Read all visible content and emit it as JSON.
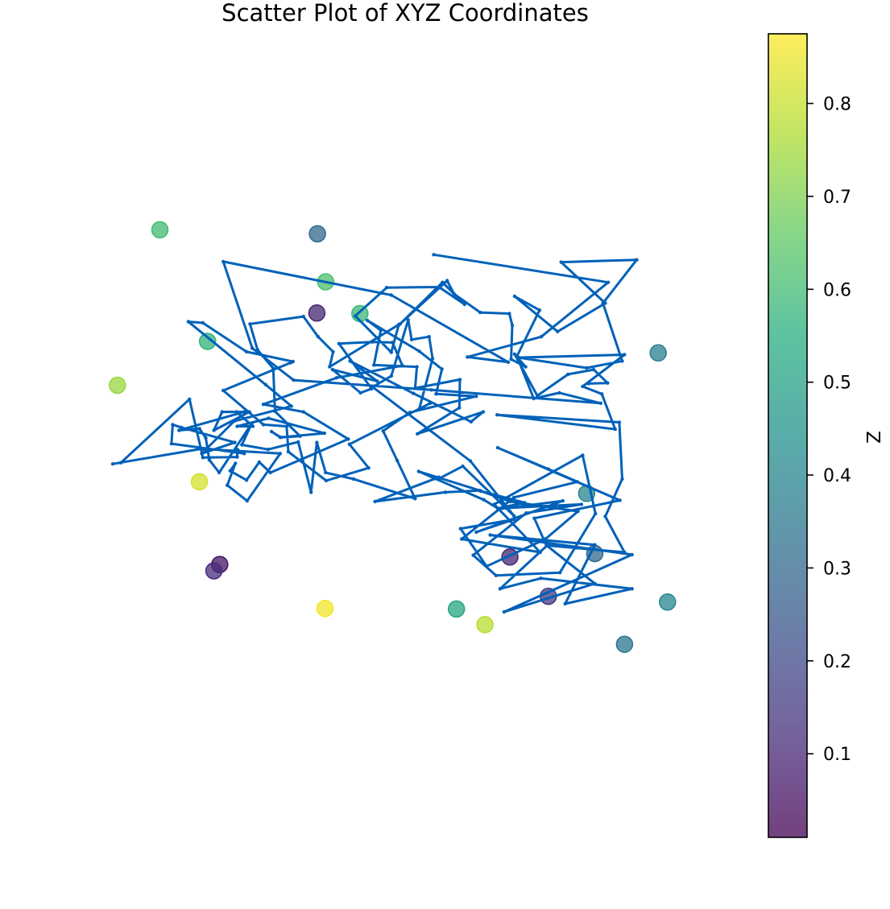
{
  "chart_data": {
    "type": "scatter",
    "title": "Scatter Plot of XYZ Coordinates",
    "xlim": [
      0,
      1
    ],
    "ylim": [
      0,
      1
    ],
    "axes_visible": false,
    "grid": false,
    "colormap": "viridis",
    "colorbar": {
      "label": "Z",
      "range": [
        0.01,
        0.875
      ],
      "ticks": [
        "0.1",
        "0.2",
        "0.3",
        "0.4",
        "0.5",
        "0.6",
        "0.7",
        "0.8"
      ],
      "tick_values": [
        0.1,
        0.2,
        0.3,
        0.4,
        0.5,
        0.6,
        0.7,
        0.8
      ],
      "placement": "right"
    },
    "points": [
      {
        "x": 0.081,
        "y": 0.856,
        "z": 0.6
      },
      {
        "x": 0.352,
        "y": 0.849,
        "z": 0.3
      },
      {
        "x": 0.366,
        "y": 0.766,
        "z": 0.62
      },
      {
        "x": 0.351,
        "y": 0.712,
        "z": 0.1
      },
      {
        "x": 0.425,
        "y": 0.711,
        "z": 0.59
      },
      {
        "x": 0.163,
        "y": 0.663,
        "z": 0.57
      },
      {
        "x": 0.938,
        "y": 0.643,
        "z": 0.38
      },
      {
        "x": 0.008,
        "y": 0.587,
        "z": 0.74
      },
      {
        "x": 0.149,
        "y": 0.42,
        "z": 0.82
      },
      {
        "x": 0.815,
        "y": 0.4,
        "z": 0.4
      },
      {
        "x": 0.829,
        "y": 0.296,
        "z": 0.3
      },
      {
        "x": 0.683,
        "y": 0.29,
        "z": 0.1
      },
      {
        "x": 0.184,
        "y": 0.277,
        "z": 0.05
      },
      {
        "x": 0.174,
        "y": 0.266,
        "z": 0.12
      },
      {
        "x": 0.749,
        "y": 0.222,
        "z": 0.15
      },
      {
        "x": 0.954,
        "y": 0.212,
        "z": 0.4
      },
      {
        "x": 0.365,
        "y": 0.201,
        "z": 0.86
      },
      {
        "x": 0.591,
        "y": 0.2,
        "z": 0.52
      },
      {
        "x": 0.64,
        "y": 0.173,
        "z": 0.78
      },
      {
        "x": 0.88,
        "y": 0.139,
        "z": 0.35
      }
    ],
    "line": {
      "color": "#0061b9",
      "x": [
        0.552,
        0.852,
        0.737,
        0.61,
        0.68,
        0.479,
        0.19,
        0.24,
        0.311,
        0.548,
        0.839,
        0.768,
        0.724,
        0.695,
        0.734,
        0.691,
        0.765,
        0.847,
        0.771,
        0.901,
        0.843,
        0.876,
        0.815,
        0.698,
        0.88,
        0.808,
        0.841,
        0.864,
        0.661,
        0.871,
        0.876,
        0.847,
        0.88,
        0.746,
        0.829,
        0.673,
        0.893,
        0.649,
        0.829,
        0.778,
        0.893,
        0.736,
        0.666,
        0.746,
        0.725,
        0.872,
        0.662,
        0.749,
        0.799,
        0.69,
        0.6,
        0.735,
        0.656,
        0.808,
        0.83,
        0.769,
        0.659,
        0.62,
        0.711,
        0.806,
        0.662,
        0.708,
        0.633,
        0.684,
        0.8,
        0.744,
        0.643,
        0.598,
        0.69,
        0.625,
        0.774,
        0.664,
        0.638,
        0.526,
        0.631,
        0.572,
        0.451,
        0.561,
        0.562,
        0.602,
        0.69,
        0.615,
        0.447,
        0.479,
        0.508,
        0.514,
        0.544,
        0.55,
        0.527,
        0.546,
        0.407,
        0.44,
        0.367,
        0.302,
        0.299,
        0.259,
        0.19,
        0.306,
        0.31,
        0.23,
        0.155,
        0.13,
        0.263,
        0.307,
        0.209,
        0.153,
        0.21,
        0.118,
        0.103,
        0.101,
        0.226,
        0.214,
        0.214,
        0.155,
        0.132,
        0.014,
        0.0,
        0.152,
        0.288,
        0.231,
        0.197,
        0.211,
        0.202,
        0.23,
        0.252,
        0.271,
        0.325,
        0.405,
        0.328,
        0.259,
        0.385,
        0.498,
        0.481,
        0.446,
        0.389,
        0.445,
        0.426,
        0.378,
        0.455,
        0.408,
        0.517,
        0.616,
        0.637,
        0.524,
        0.596,
        0.597,
        0.52,
        0.523,
        0.449,
        0.461,
        0.438,
        0.527,
        0.566,
        0.556,
        0.625,
        0.511,
        0.465,
        0.489,
        0.52,
        0.414,
        0.366,
        0.351,
        0.341,
        0.319,
        0.267,
        0.222,
        0.239,
        0.183,
        0.166,
        0.16,
        0.149,
        0.114,
        0.226,
        0.188,
        0.174,
        0.235,
        0.213,
        0.241,
        0.214,
        0.268,
        0.364,
        0.288,
        0.273,
        0.289,
        0.322,
        0.279,
        0.276,
        0.249,
        0.236,
        0.328,
        0.353,
        0.379,
        0.373,
        0.492,
        0.479,
        0.417,
        0.471,
        0.561,
        0.605,
        0.567,
        0.494,
        0.575,
        0.587,
        0.632,
        0.682,
        0.687,
        0.685,
        0.71,
        0.691,
        0.73,
        0.783,
        0.827,
        0.851,
        0.818
      ],
      "y": [
        0.813,
        0.765,
        0.671,
        0.636,
        0.627,
        0.743,
        0.801,
        0.651,
        0.596,
        0.579,
        0.556,
        0.574,
        0.564,
        0.637,
        0.717,
        0.741,
        0.68,
        0.729,
        0.8,
        0.804,
        0.729,
        0.629,
        0.617,
        0.635,
        0.64,
        0.585,
        0.572,
        0.511,
        0.536,
        0.523,
        0.425,
        0.36,
        0.298,
        0.31,
        0.244,
        0.195,
        0.294,
        0.328,
        0.311,
        0.209,
        0.235,
        0.253,
        0.235,
        0.309,
        0.357,
        0.388,
        0.479,
        0.442,
        0.42,
        0.393,
        0.321,
        0.298,
        0.381,
        0.466,
        0.365,
        0.263,
        0.258,
        0.293,
        0.366,
        0.381,
        0.374,
        0.384,
        0.404,
        0.386,
        0.369,
        0.321,
        0.274,
        0.339,
        0.355,
        0.333,
        0.387,
        0.373,
        0.389,
        0.438,
        0.405,
        0.402,
        0.386,
        0.428,
        0.426,
        0.447,
        0.361,
        0.456,
        0.584,
        0.603,
        0.7,
        0.666,
        0.671,
        0.633,
        0.546,
        0.556,
        0.485,
        0.444,
        0.422,
        0.472,
        0.516,
        0.519,
        0.578,
        0.626,
        0.628,
        0.645,
        0.695,
        0.697,
        0.588,
        0.551,
        0.525,
        0.469,
        0.488,
        0.514,
        0.519,
        0.486,
        0.469,
        0.476,
        0.463,
        0.462,
        0.563,
        0.453,
        0.451,
        0.477,
        0.469,
        0.387,
        0.414,
        0.452,
        0.439,
        0.423,
        0.454,
        0.436,
        0.459,
        0.494,
        0.541,
        0.554,
        0.6,
        0.621,
        0.661,
        0.662,
        0.659,
        0.581,
        0.574,
        0.614,
        0.594,
        0.629,
        0.573,
        0.524,
        0.541,
        0.503,
        0.548,
        0.597,
        0.582,
        0.619,
        0.622,
        0.682,
        0.699,
        0.646,
        0.615,
        0.572,
        0.568,
        0.54,
        0.508,
        0.457,
        0.391,
        0.425,
        0.436,
        0.488,
        0.402,
        0.489,
        0.476,
        0.484,
        0.521,
        0.436,
        0.458,
        0.496,
        0.512,
        0.509,
        0.541,
        0.541,
        0.509,
        0.541,
        0.541,
        0.516,
        0.516,
        0.53,
        0.504,
        0.497,
        0.507,
        0.497,
        0.499,
        0.542,
        0.616,
        0.648,
        0.693,
        0.706,
        0.671,
        0.645,
        0.619,
        0.692,
        0.644,
        0.707,
        0.756,
        0.757,
        0.727,
        0.765,
        0.693,
        0.768,
        0.745,
        0.713,
        0.711,
        0.691,
        0.632,
        0.619,
        0.641,
        0.569,
        0.606,
        0.614,
        0.591,
        0.59
      ]
    }
  }
}
